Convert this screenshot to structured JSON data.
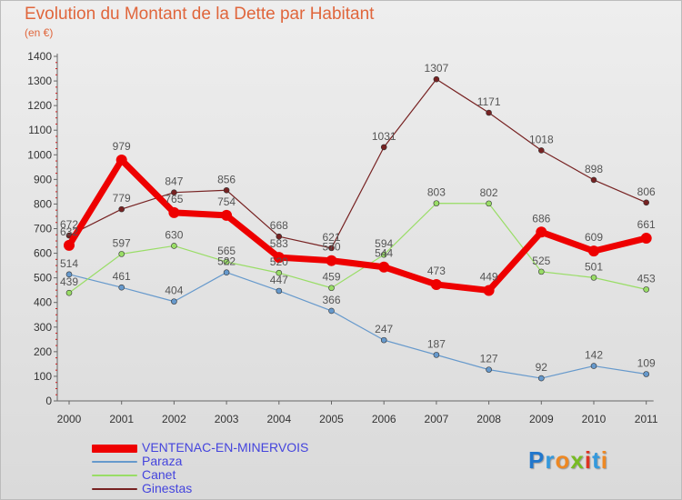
{
  "header": {
    "title": "Evolution du Montant de la Dette par Habitant",
    "unit": "(en €)"
  },
  "brand": {
    "logo_text": "Proxiti"
  },
  "chart_data": {
    "type": "line",
    "title": "Evolution du Montant de la Dette par Habitant",
    "subtitle": "(en €)",
    "xlabel": "",
    "ylabel": "",
    "x": [
      "2000",
      "2001",
      "2002",
      "2003",
      "2004",
      "2005",
      "2006",
      "2007",
      "2008",
      "2009",
      "2010",
      "2011"
    ],
    "ylim": [
      0,
      1400
    ],
    "yticks": [
      0,
      100,
      200,
      300,
      400,
      500,
      600,
      700,
      800,
      900,
      1000,
      1100,
      1200,
      1300,
      1400
    ],
    "grid": false,
    "legend_position": "bottom-left",
    "series": [
      {
        "name": "VENTENAC-EN-MINERVOIS",
        "color": "#ee0000",
        "values": [
          632,
          979,
          765,
          754,
          583,
          570,
          544,
          473,
          449,
          686,
          609,
          661
        ]
      },
      {
        "name": "Paraza",
        "color": "#6699cc",
        "values": [
          514,
          461,
          404,
          522,
          447,
          366,
          247,
          187,
          127,
          92,
          142,
          109
        ]
      },
      {
        "name": "Canet",
        "color": "#99dd66",
        "values": [
          439,
          597,
          630,
          565,
          520,
          459,
          594,
          803,
          802,
          525,
          501,
          453
        ]
      },
      {
        "name": "Ginestas",
        "color": "#772222",
        "values": [
          672,
          779,
          847,
          856,
          668,
          621,
          1031,
          1307,
          1171,
          1018,
          898,
          806
        ]
      }
    ]
  }
}
